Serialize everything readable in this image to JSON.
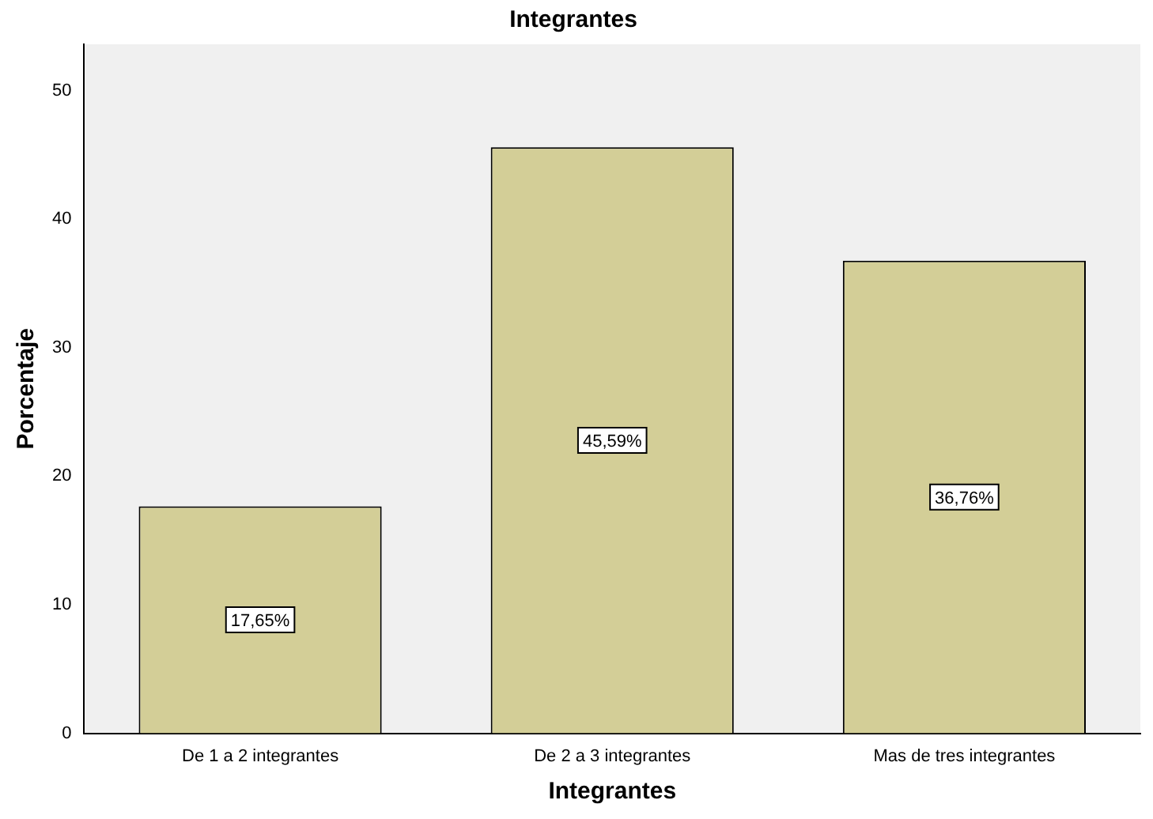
{
  "chart_data": {
    "type": "bar",
    "title": "Integrantes",
    "xlabel": "Integrantes",
    "ylabel": "Porcentaje",
    "categories": [
      "De 1 a 2 integrantes",
      "De 2 a 3 integrantes",
      "Mas de tres integrantes"
    ],
    "values": [
      17.65,
      45.59,
      36.76
    ],
    "color": "#d3ce97",
    "value_labels": [
      "17,65%",
      "45,59%",
      "36,76%"
    ],
    "ylim": [
      0,
      53.6
    ],
    "yticks": [
      0,
      10,
      20,
      30,
      40,
      50
    ],
    "grid": false,
    "legend": false
  }
}
